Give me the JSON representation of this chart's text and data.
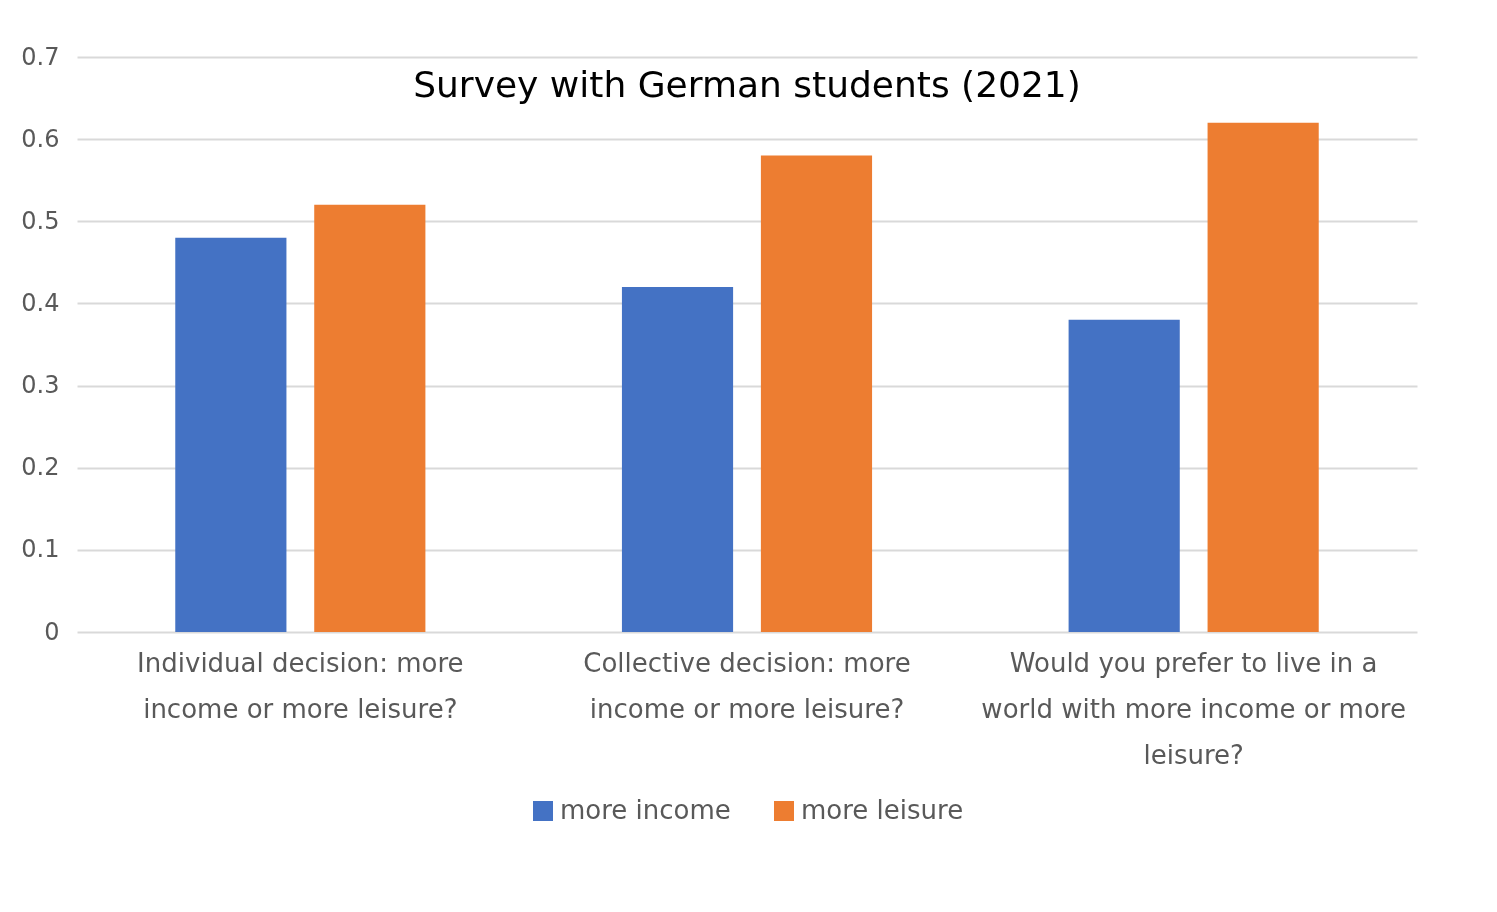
{
  "chart_data": {
    "type": "bar",
    "title": "Survey with German students (2021)",
    "categories": [
      "Individual decision: more income or more leisure?",
      "Collective decision: more income or more leisure?",
      "Would you prefer to live in a world with more income or more leisure?"
    ],
    "series": [
      {
        "name": "more income",
        "color": "#4472c4",
        "values": [
          0.48,
          0.42,
          0.38
        ]
      },
      {
        "name": "more leisure",
        "color": "#ed7d31",
        "values": [
          0.52,
          0.58,
          0.62
        ]
      }
    ],
    "ylim": [
      0,
      0.7
    ],
    "yticks": [
      0,
      0.1,
      0.2,
      0.3,
      0.4,
      0.5,
      0.6,
      0.7
    ],
    "grid": "y",
    "legend": "bottom"
  }
}
